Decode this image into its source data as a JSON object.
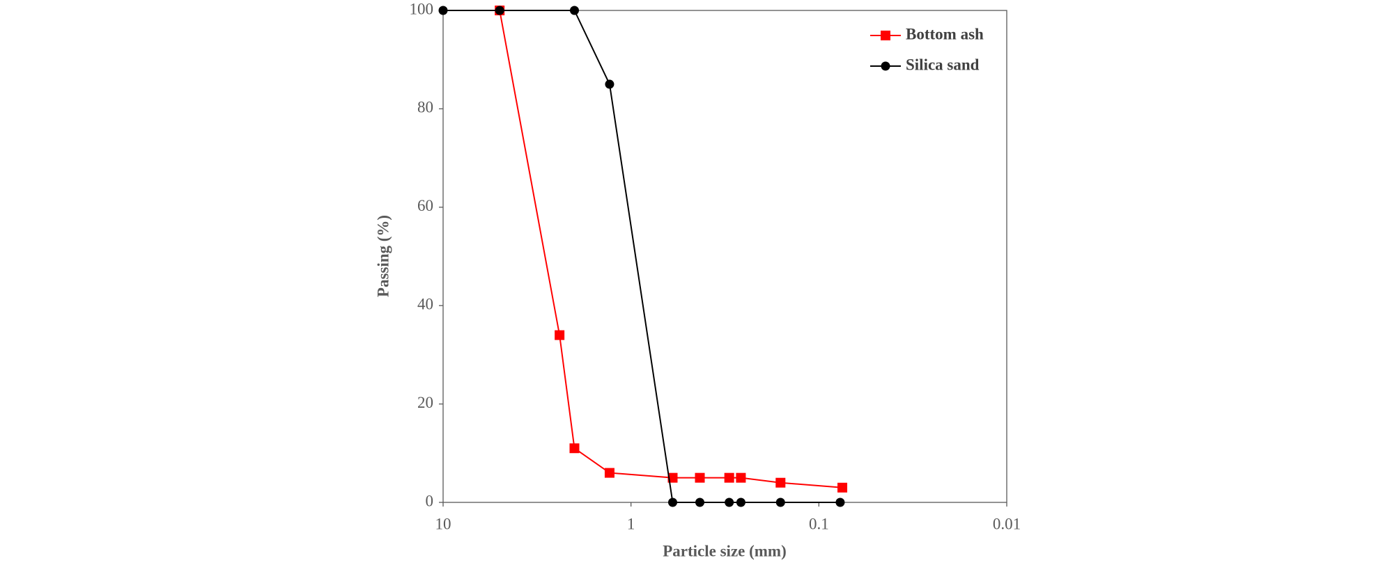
{
  "chart_data": {
    "type": "line",
    "x_label": "Particle size (mm)",
    "y_label": "Passing (%)",
    "xscale": "log",
    "xlim": [
      10,
      0.01
    ],
    "xticks": [
      10,
      1,
      0.1,
      0.01
    ],
    "ylim": [
      0,
      100
    ],
    "yticks": [
      0,
      20,
      40,
      60,
      80,
      100
    ],
    "grid": false,
    "legend": "upper right",
    "series": [
      {
        "name": "Bottom ash",
        "color": "#ff0000",
        "marker": "square",
        "x": [
          5,
          2.4,
          2,
          1.3,
          0.6,
          0.43,
          0.3,
          0.26,
          0.16,
          0.075
        ],
        "values": [
          100,
          34,
          11,
          6,
          5,
          5,
          5,
          5,
          4,
          3
        ]
      },
      {
        "name": "Silica sand",
        "color": "#000000",
        "marker": "circle",
        "x": [
          10,
          5,
          2,
          1.3,
          0.6,
          0.43,
          0.3,
          0.26,
          0.16,
          0.077
        ],
        "values": [
          100,
          100,
          100,
          85,
          0,
          0,
          0,
          0,
          0,
          0
        ]
      }
    ]
  }
}
